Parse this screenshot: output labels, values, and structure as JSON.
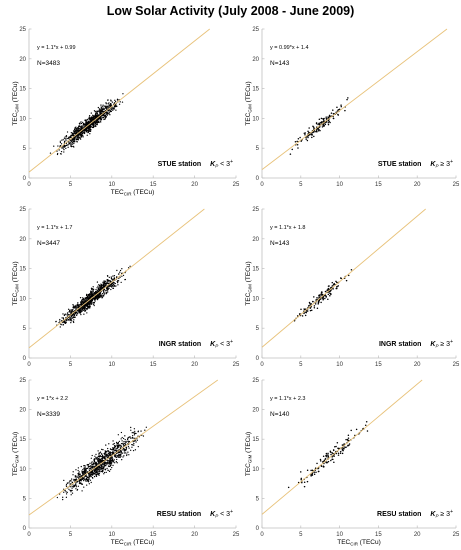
{
  "title": "Low Solar Activity (July 2008 - June 2009)",
  "colors": {
    "fit_line": "#e8c27a",
    "points": "#000000",
    "axis": "#bfbfbf",
    "text": "#000000"
  },
  "chart_data": [
    {
      "type": "scatter",
      "station": "STUE station",
      "condition": "K",
      "condition_sub": "P",
      "condition_rel": " < 3",
      "condition_sup": "+",
      "equation": "y = 1.1*x + 0.99",
      "n_label": "N=3483",
      "n": 3483,
      "slope": 1.1,
      "intercept": 0.99,
      "x_range": [
        2.5,
        12
      ],
      "spread": 0.9,
      "xlabel": {
        "main": "TEC",
        "sub": "CIR",
        "unit": " (TECu)"
      },
      "ylabel": {
        "main": "TEC",
        "sub": "GIM",
        "unit": " (TECu)"
      },
      "xlim": [
        0,
        25
      ],
      "ylim": [
        0,
        25
      ],
      "xticks": [
        "0",
        "5",
        "10",
        "15",
        "20",
        "25"
      ],
      "yticks": [
        "0",
        "5",
        "10",
        "15",
        "20",
        "25"
      ]
    },
    {
      "type": "scatter",
      "station": "STUE station",
      "condition": "K",
      "condition_sub": "P",
      "condition_rel": " ≥ 3",
      "condition_sup": "+",
      "equation": "y = 0.99*x + 1.4",
      "n_label": "N=143",
      "n": 143,
      "slope": 0.99,
      "intercept": 1.4,
      "x_range": [
        3,
        12
      ],
      "spread": 0.7,
      "xlabel": {
        "main": "",
        "sub": "",
        "unit": ""
      },
      "ylabel": {
        "main": "TEC",
        "sub": "GIM",
        "unit": " (TECu)"
      },
      "xlim": [
        0,
        25
      ],
      "ylim": [
        0,
        25
      ],
      "xticks": [
        "0",
        "5",
        "10",
        "15",
        "20",
        "25"
      ],
      "yticks": [
        "0",
        "5",
        "10",
        "15",
        "20",
        "25"
      ]
    },
    {
      "type": "scatter",
      "station": "INGR station",
      "condition": "K",
      "condition_sub": "P",
      "condition_rel": " < 3",
      "condition_sup": "+",
      "equation": "y = 1.1*x + 1.7",
      "n_label": "N=3447",
      "n": 3447,
      "slope": 1.1,
      "intercept": 1.7,
      "x_range": [
        2.5,
        12.5
      ],
      "spread": 0.9,
      "xlabel": {
        "main": "",
        "sub": "",
        "unit": ""
      },
      "ylabel": {
        "main": "TEC",
        "sub": "GIM",
        "unit": " (TECu)"
      },
      "xlim": [
        0,
        25
      ],
      "ylim": [
        0,
        25
      ],
      "xticks": [
        "0",
        "5",
        "10",
        "15",
        "20",
        "25"
      ],
      "yticks": [
        "0",
        "5",
        "10",
        "15",
        "20",
        "25"
      ]
    },
    {
      "type": "scatter",
      "station": "INGR station",
      "condition": "K",
      "condition_sub": "P",
      "condition_rel": " ≥ 3",
      "condition_sup": "+",
      "equation": "y = 1.1*x + 1.8",
      "n_label": "N=143",
      "n": 143,
      "slope": 1.1,
      "intercept": 1.8,
      "x_range": [
        3,
        12.5
      ],
      "spread": 0.7,
      "xlabel": {
        "main": "",
        "sub": "",
        "unit": ""
      },
      "ylabel": {
        "main": "TEC",
        "sub": "GIM",
        "unit": " (TECu)"
      },
      "xlim": [
        0,
        25
      ],
      "ylim": [
        0,
        25
      ],
      "xticks": [
        "0",
        "5",
        "10",
        "15",
        "20",
        "25"
      ],
      "yticks": [
        "0",
        "5",
        "10",
        "15",
        "20",
        "25"
      ]
    },
    {
      "type": "scatter",
      "station": "RESU station",
      "condition": "K",
      "condition_sub": "P",
      "condition_rel": " < 3",
      "condition_sup": "+",
      "equation": "y = 1*x + 2.2",
      "n_label": "N=3339",
      "n": 3339,
      "slope": 1.0,
      "intercept": 2.2,
      "x_range": [
        2.5,
        15
      ],
      "spread": 1.3,
      "xlabel": {
        "main": "TEC",
        "sub": "CIR",
        "unit": " (TECu)"
      },
      "ylabel": {
        "main": "TEC",
        "sub": "GIM",
        "unit": " (TECu)"
      },
      "xlim": [
        0,
        25
      ],
      "ylim": [
        0,
        25
      ],
      "xticks": [
        "0",
        "5",
        "10",
        "15",
        "20",
        "25"
      ],
      "yticks": [
        "0",
        "5",
        "10",
        "15",
        "20",
        "25"
      ]
    },
    {
      "type": "scatter",
      "station": "RESU station",
      "condition": "K",
      "condition_sub": "P",
      "condition_rel": " ≥ 3",
      "condition_sup": "+",
      "equation": "y = 1.1*x + 2.3",
      "n_label": "N=140",
      "n": 140,
      "slope": 1.1,
      "intercept": 2.3,
      "x_range": [
        3,
        15
      ],
      "spread": 0.9,
      "xlabel": {
        "main": "TEC",
        "sub": "CIR",
        "unit": " (TECu)"
      },
      "ylabel": {
        "main": "TEC",
        "sub": "GIM",
        "unit": " (TECu)"
      },
      "xlim": [
        0,
        25
      ],
      "ylim": [
        0,
        25
      ],
      "xticks": [
        "0",
        "5",
        "10",
        "15",
        "20",
        "25"
      ],
      "yticks": [
        "0",
        "5",
        "10",
        "15",
        "20",
        "25"
      ]
    }
  ]
}
